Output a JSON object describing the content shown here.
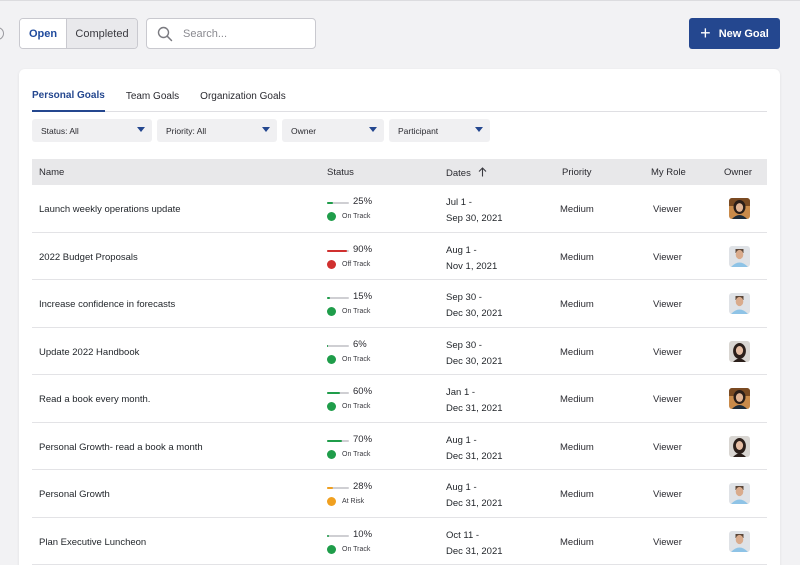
{
  "toolbar": {
    "seg_open": "Open",
    "seg_completed": "Completed",
    "search_placeholder": "Search...",
    "new_goal_label": "New Goal"
  },
  "tabs": [
    {
      "label": "Personal Goals",
      "active": true
    },
    {
      "label": "Team Goals",
      "active": false
    },
    {
      "label": "Organization Goals",
      "active": false
    }
  ],
  "filters": [
    {
      "label": "Status: All"
    },
    {
      "label": "Priority: All"
    },
    {
      "label": "Owner"
    },
    {
      "label": "Participant"
    }
  ],
  "columns": {
    "name": "Name",
    "status": "Status",
    "dates": "Dates",
    "priority": "Priority",
    "role": "My Role",
    "owner": "Owner"
  },
  "colors": {
    "accent": "#24478f",
    "on_track": "#1f9d4a",
    "off_track": "#d0302f",
    "at_risk": "#f0a020"
  },
  "rows": [
    {
      "name": "Launch weekly operations update",
      "progress": "25%",
      "status": "On Track",
      "date_start": "Jul 1 -",
      "date_end": "Sep 30, 2021",
      "priority": "Medium",
      "role": "Viewer",
      "avatar": "woman-dark-hair"
    },
    {
      "name": "2022 Budget Proposals",
      "progress": "90%",
      "status": "Off Track",
      "date_start": "Aug 1 -",
      "date_end": "Nov 1, 2021",
      "priority": "Medium",
      "role": "Viewer",
      "avatar": "man-light-shirt"
    },
    {
      "name": "Increase confidence in forecasts",
      "progress": "15%",
      "status": "On Track",
      "date_start": "Sep 30 -",
      "date_end": "Dec 30, 2021",
      "priority": "Medium",
      "role": "Viewer",
      "avatar": "man-light-shirt"
    },
    {
      "name": "Update 2022 Handbook",
      "progress": "6%",
      "status": "On Track",
      "date_start": "Sep 30 -",
      "date_end": "Dec 30, 2021",
      "priority": "Medium",
      "role": "Viewer",
      "avatar": "woman-long-hair"
    },
    {
      "name": "Read a book every month.",
      "progress": "60%",
      "status": "On Track",
      "date_start": "Jan 1 -",
      "date_end": "Dec 31, 2021",
      "priority": "Medium",
      "role": "Viewer",
      "avatar": "woman-dark-hair"
    },
    {
      "name": "Personal Growth- read a book a month",
      "progress": "70%",
      "status": "On Track",
      "date_start": "Aug 1 -",
      "date_end": "Dec 31, 2021",
      "priority": "Medium",
      "role": "Viewer",
      "avatar": "woman-long-hair"
    },
    {
      "name": "Personal Growth",
      "progress": "28%",
      "status": "At Risk",
      "date_start": "Aug 1 -",
      "date_end": "Dec 31, 2021",
      "priority": "Medium",
      "role": "Viewer",
      "avatar": "man-light-shirt"
    },
    {
      "name": "Plan Executive Luncheon",
      "progress": "10%",
      "status": "On Track",
      "date_start": "Oct 11 -",
      "date_end": "Dec 31, 2021",
      "priority": "Medium",
      "role": "Viewer",
      "avatar": "man-light-shirt"
    }
  ]
}
